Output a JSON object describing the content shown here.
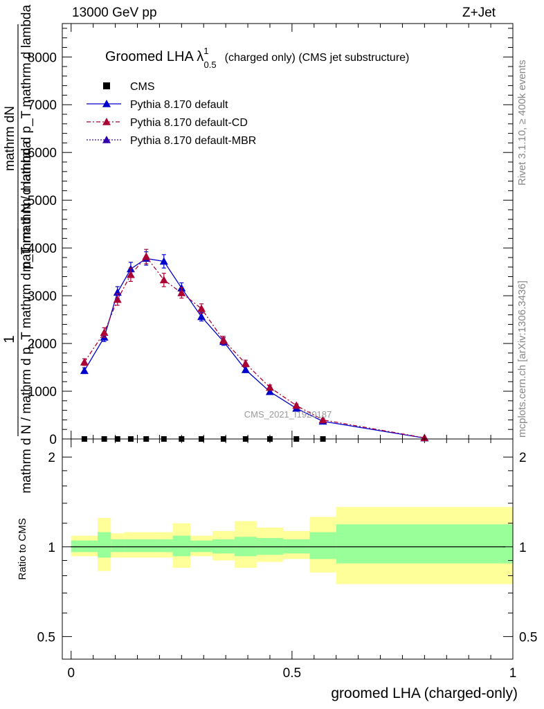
{
  "header": {
    "left": "13000 GeV pp",
    "right": "Z+Jet"
  },
  "side": {
    "rivet": "Rivet 3.1.10, ≥ 400k events",
    "mcplots": "mcplots.cern.ch [arXiv:1306.3436]"
  },
  "watermark": "CMS_2021_I1920187",
  "colors": {
    "default": "#0000cc",
    "cd": "#aa0033",
    "mbr": "#3300aa",
    "band_inner": "#99ff99",
    "band_outer": "#ffff99"
  },
  "chart_data": [
    {
      "type": "line",
      "panel": "main",
      "title_main": "Groomed LHA",
      "title_symbol": "λ",
      "title_sup": "1",
      "title_sub": "0.5",
      "title_rest": "(charged only) (CMS jet substructure)",
      "ylabel_parts": [
        "mathrm dN",
        "1",
        "mathrm d N / mathrm d p_T mathrm d p_T mathrm d lambda",
        "mathrm d N / mathrm d p_T mathrm d lambda"
      ],
      "ylim": [
        0,
        8700
      ],
      "yticks": [
        0,
        1000,
        2000,
        3000,
        4000,
        5000,
        6000,
        7000,
        8000
      ],
      "ytick_labels": [
        "0",
        "1000",
        "2000",
        "3000",
        "4000",
        "5000",
        "6000",
        "7000",
        "8000"
      ],
      "xlim": [
        -0.02,
        1.0
      ],
      "legend": [
        {
          "label": "CMS",
          "key": "cms"
        },
        {
          "label": "Pythia 8.170 default",
          "key": "default"
        },
        {
          "label": "Pythia 8.170 default-CD",
          "key": "cd"
        },
        {
          "label": "Pythia 8.170 default-MBR",
          "key": "mbr"
        }
      ],
      "series": [
        {
          "name": "CMS",
          "key": "cms",
          "x": [
            0.03,
            0.075,
            0.105,
            0.135,
            0.17,
            0.21,
            0.25,
            0.295,
            0.345,
            0.395,
            0.45,
            0.51,
            0.57
          ],
          "values": [
            0,
            0,
            0,
            0,
            0,
            0,
            0,
            0,
            0,
            0,
            0,
            0,
            0
          ]
        },
        {
          "name": "Pythia 8.170 default",
          "key": "default",
          "x": [
            0.03,
            0.075,
            0.105,
            0.135,
            0.17,
            0.21,
            0.25,
            0.295,
            0.345,
            0.395,
            0.45,
            0.51,
            0.57,
            0.8
          ],
          "values": [
            1430,
            2130,
            3070,
            3560,
            3780,
            3720,
            3160,
            2560,
            2040,
            1450,
            990,
            640,
            370,
            20
          ],
          "errors": [
            60,
            90,
            120,
            140,
            140,
            140,
            110,
            90,
            80,
            60,
            40,
            30,
            20,
            5
          ]
        },
        {
          "name": "Pythia 8.170 default-CD",
          "key": "cd",
          "x": [
            0.03,
            0.075,
            0.105,
            0.135,
            0.17,
            0.21,
            0.25,
            0.295,
            0.345,
            0.395,
            0.45,
            0.51,
            0.57,
            0.8
          ],
          "values": [
            1610,
            2230,
            2920,
            3440,
            3820,
            3330,
            3060,
            2730,
            2070,
            1580,
            1080,
            700,
            400,
            25
          ],
          "errors": [
            70,
            100,
            120,
            140,
            150,
            140,
            110,
            100,
            80,
            70,
            50,
            35,
            25,
            5
          ]
        },
        {
          "name": "Pythia 8.170 default-MBR",
          "key": "mbr",
          "x": [],
          "values": []
        }
      ]
    },
    {
      "type": "area",
      "panel": "ratio",
      "ylabel": "Ratio to CMS",
      "yscale": "log",
      "ylim": [
        0.42,
        2.3
      ],
      "yticks": [
        0.5,
        1,
        2
      ],
      "ytick_labels": [
        "0.5",
        "1",
        "2"
      ],
      "xlim": [
        -0.02,
        1.0
      ],
      "xticks": [
        0,
        0.5,
        1
      ],
      "xtick_labels": [
        "0",
        "0.5",
        "1"
      ],
      "xlabel": "groomed LHA (charged-only)",
      "bins": [
        {
          "lo": 0.0,
          "hi": 0.06,
          "inner": [
            0.96,
            1.05
          ],
          "outer": [
            0.93,
            1.09
          ]
        },
        {
          "lo": 0.06,
          "hi": 0.09,
          "inner": [
            0.92,
            1.12
          ],
          "outer": [
            0.83,
            1.25
          ]
        },
        {
          "lo": 0.09,
          "hi": 0.12,
          "inner": [
            0.96,
            1.06
          ],
          "outer": [
            0.92,
            1.11
          ]
        },
        {
          "lo": 0.12,
          "hi": 0.15,
          "inner": [
            0.96,
            1.06
          ],
          "outer": [
            0.92,
            1.12
          ]
        },
        {
          "lo": 0.15,
          "hi": 0.19,
          "inner": [
            0.96,
            1.06
          ],
          "outer": [
            0.92,
            1.12
          ]
        },
        {
          "lo": 0.19,
          "hi": 0.23,
          "inner": [
            0.96,
            1.06
          ],
          "outer": [
            0.92,
            1.12
          ]
        },
        {
          "lo": 0.23,
          "hi": 0.27,
          "inner": [
            0.93,
            1.09
          ],
          "outer": [
            0.85,
            1.2
          ]
        },
        {
          "lo": 0.27,
          "hi": 0.32,
          "inner": [
            0.96,
            1.05
          ],
          "outer": [
            0.93,
            1.09
          ]
        },
        {
          "lo": 0.32,
          "hi": 0.37,
          "inner": [
            0.95,
            1.06
          ],
          "outer": [
            0.9,
            1.13
          ]
        },
        {
          "lo": 0.37,
          "hi": 0.42,
          "inner": [
            0.93,
            1.08
          ],
          "outer": [
            0.85,
            1.22
          ]
        },
        {
          "lo": 0.42,
          "hi": 0.48,
          "inner": [
            0.94,
            1.07
          ],
          "outer": [
            0.89,
            1.16
          ]
        },
        {
          "lo": 0.48,
          "hi": 0.54,
          "inner": [
            0.95,
            1.06
          ],
          "outer": [
            0.91,
            1.13
          ]
        },
        {
          "lo": 0.54,
          "hi": 0.6,
          "inner": [
            0.91,
            1.12
          ],
          "outer": [
            0.82,
            1.26
          ]
        },
        {
          "lo": 0.6,
          "hi": 1.0,
          "inner": [
            0.88,
            1.19
          ],
          "outer": [
            0.75,
            1.36
          ]
        }
      ]
    }
  ]
}
